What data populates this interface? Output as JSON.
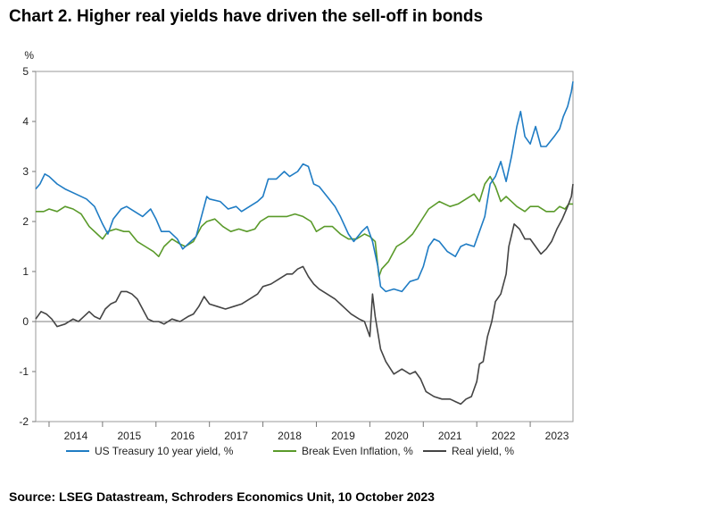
{
  "title": "Chart 2. Higher real yields have driven the sell-off in bonds",
  "source": "Source: LSEG Datastream, Schroders Economics Unit, 10 October 2023",
  "chart_data": {
    "type": "line",
    "ylabel": "%",
    "ylim": [
      -2,
      5
    ],
    "yticks": [
      -2,
      -1,
      0,
      1,
      2,
      3,
      4,
      5
    ],
    "xlim": [
      2013.75,
      2023.8
    ],
    "xticks": [
      "2014",
      "2015",
      "2016",
      "2017",
      "2018",
      "2019",
      "2020",
      "2021",
      "2022",
      "2023"
    ],
    "grid": false,
    "legend": "bottom",
    "series": [
      {
        "name": "US Treasury 10 year yield, %",
        "color": "#1f7cc4",
        "points": [
          [
            2013.75,
            2.65
          ],
          [
            2013.83,
            2.75
          ],
          [
            2013.92,
            2.95
          ],
          [
            2014.0,
            2.9
          ],
          [
            2014.15,
            2.75
          ],
          [
            2014.3,
            2.65
          ],
          [
            2014.5,
            2.55
          ],
          [
            2014.7,
            2.45
          ],
          [
            2014.85,
            2.3
          ],
          [
            2015.0,
            1.95
          ],
          [
            2015.1,
            1.75
          ],
          [
            2015.2,
            2.05
          ],
          [
            2015.35,
            2.25
          ],
          [
            2015.45,
            2.3
          ],
          [
            2015.6,
            2.2
          ],
          [
            2015.75,
            2.1
          ],
          [
            2015.9,
            2.25
          ],
          [
            2016.0,
            2.05
          ],
          [
            2016.1,
            1.8
          ],
          [
            2016.25,
            1.8
          ],
          [
            2016.4,
            1.65
          ],
          [
            2016.5,
            1.45
          ],
          [
            2016.6,
            1.55
          ],
          [
            2016.75,
            1.7
          ],
          [
            2016.85,
            2.1
          ],
          [
            2016.95,
            2.5
          ],
          [
            2017.0,
            2.45
          ],
          [
            2017.2,
            2.4
          ],
          [
            2017.35,
            2.25
          ],
          [
            2017.5,
            2.3
          ],
          [
            2017.6,
            2.2
          ],
          [
            2017.75,
            2.3
          ],
          [
            2017.9,
            2.4
          ],
          [
            2018.0,
            2.5
          ],
          [
            2018.1,
            2.85
          ],
          [
            2018.25,
            2.85
          ],
          [
            2018.4,
            3.0
          ],
          [
            2018.5,
            2.9
          ],
          [
            2018.65,
            3.0
          ],
          [
            2018.75,
            3.15
          ],
          [
            2018.85,
            3.1
          ],
          [
            2018.95,
            2.75
          ],
          [
            2019.05,
            2.7
          ],
          [
            2019.2,
            2.5
          ],
          [
            2019.35,
            2.3
          ],
          [
            2019.45,
            2.1
          ],
          [
            2019.6,
            1.75
          ],
          [
            2019.7,
            1.6
          ],
          [
            2019.85,
            1.8
          ],
          [
            2019.95,
            1.9
          ],
          [
            2020.05,
            1.6
          ],
          [
            2020.15,
            1.1
          ],
          [
            2020.2,
            0.7
          ],
          [
            2020.3,
            0.6
          ],
          [
            2020.45,
            0.65
          ],
          [
            2020.6,
            0.6
          ],
          [
            2020.75,
            0.8
          ],
          [
            2020.9,
            0.85
          ],
          [
            2021.0,
            1.1
          ],
          [
            2021.1,
            1.5
          ],
          [
            2021.2,
            1.65
          ],
          [
            2021.3,
            1.6
          ],
          [
            2021.45,
            1.4
          ],
          [
            2021.6,
            1.3
          ],
          [
            2021.7,
            1.5
          ],
          [
            2021.8,
            1.55
          ],
          [
            2021.95,
            1.5
          ],
          [
            2022.05,
            1.8
          ],
          [
            2022.15,
            2.1
          ],
          [
            2022.25,
            2.75
          ],
          [
            2022.35,
            2.9
          ],
          [
            2022.45,
            3.2
          ],
          [
            2022.55,
            2.8
          ],
          [
            2022.65,
            3.3
          ],
          [
            2022.75,
            3.9
          ],
          [
            2022.82,
            4.2
          ],
          [
            2022.9,
            3.7
          ],
          [
            2023.0,
            3.55
          ],
          [
            2023.1,
            3.9
          ],
          [
            2023.2,
            3.5
          ],
          [
            2023.3,
            3.5
          ],
          [
            2023.45,
            3.7
          ],
          [
            2023.55,
            3.85
          ],
          [
            2023.62,
            4.1
          ],
          [
            2023.7,
            4.3
          ],
          [
            2023.77,
            4.6
          ],
          [
            2023.8,
            4.8
          ]
        ]
      },
      {
        "name": "Break Even Inflation, %",
        "color": "#5a9a2a",
        "points": [
          [
            2013.75,
            2.2
          ],
          [
            2013.9,
            2.2
          ],
          [
            2014.0,
            2.25
          ],
          [
            2014.15,
            2.2
          ],
          [
            2014.3,
            2.3
          ],
          [
            2014.45,
            2.25
          ],
          [
            2014.6,
            2.15
          ],
          [
            2014.75,
            1.9
          ],
          [
            2014.9,
            1.75
          ],
          [
            2015.0,
            1.65
          ],
          [
            2015.1,
            1.8
          ],
          [
            2015.25,
            1.85
          ],
          [
            2015.4,
            1.8
          ],
          [
            2015.5,
            1.8
          ],
          [
            2015.65,
            1.6
          ],
          [
            2015.8,
            1.5
          ],
          [
            2015.95,
            1.4
          ],
          [
            2016.05,
            1.3
          ],
          [
            2016.15,
            1.5
          ],
          [
            2016.3,
            1.65
          ],
          [
            2016.45,
            1.55
          ],
          [
            2016.55,
            1.5
          ],
          [
            2016.7,
            1.6
          ],
          [
            2016.85,
            1.9
          ],
          [
            2016.95,
            2.0
          ],
          [
            2017.1,
            2.05
          ],
          [
            2017.25,
            1.9
          ],
          [
            2017.4,
            1.8
          ],
          [
            2017.55,
            1.85
          ],
          [
            2017.7,
            1.8
          ],
          [
            2017.85,
            1.85
          ],
          [
            2017.95,
            2.0
          ],
          [
            2018.1,
            2.1
          ],
          [
            2018.3,
            2.1
          ],
          [
            2018.45,
            2.1
          ],
          [
            2018.6,
            2.15
          ],
          [
            2018.75,
            2.1
          ],
          [
            2018.9,
            2.0
          ],
          [
            2019.0,
            1.8
          ],
          [
            2019.15,
            1.9
          ],
          [
            2019.3,
            1.9
          ],
          [
            2019.45,
            1.75
          ],
          [
            2019.6,
            1.65
          ],
          [
            2019.75,
            1.65
          ],
          [
            2019.9,
            1.75
          ],
          [
            2020.0,
            1.7
          ],
          [
            2020.1,
            1.6
          ],
          [
            2020.17,
            0.9
          ],
          [
            2020.22,
            1.05
          ],
          [
            2020.35,
            1.2
          ],
          [
            2020.5,
            1.5
          ],
          [
            2020.65,
            1.6
          ],
          [
            2020.8,
            1.75
          ],
          [
            2020.95,
            2.0
          ],
          [
            2021.1,
            2.25
          ],
          [
            2021.3,
            2.4
          ],
          [
            2021.5,
            2.3
          ],
          [
            2021.65,
            2.35
          ],
          [
            2021.8,
            2.45
          ],
          [
            2021.95,
            2.55
          ],
          [
            2022.05,
            2.4
          ],
          [
            2022.15,
            2.75
          ],
          [
            2022.25,
            2.9
          ],
          [
            2022.35,
            2.7
          ],
          [
            2022.45,
            2.4
          ],
          [
            2022.55,
            2.5
          ],
          [
            2022.65,
            2.4
          ],
          [
            2022.75,
            2.3
          ],
          [
            2022.9,
            2.2
          ],
          [
            2023.0,
            2.3
          ],
          [
            2023.15,
            2.3
          ],
          [
            2023.3,
            2.2
          ],
          [
            2023.45,
            2.2
          ],
          [
            2023.55,
            2.3
          ],
          [
            2023.65,
            2.25
          ],
          [
            2023.72,
            2.35
          ],
          [
            2023.8,
            2.35
          ]
        ]
      },
      {
        "name": "Real yield, %",
        "color": "#444444",
        "points": [
          [
            2013.75,
            0.05
          ],
          [
            2013.85,
            0.2
          ],
          [
            2013.95,
            0.15
          ],
          [
            2014.05,
            0.05
          ],
          [
            2014.15,
            -0.1
          ],
          [
            2014.3,
            -0.05
          ],
          [
            2014.45,
            0.05
          ],
          [
            2014.55,
            0.0
          ],
          [
            2014.65,
            0.1
          ],
          [
            2014.75,
            0.2
          ],
          [
            2014.85,
            0.1
          ],
          [
            2014.95,
            0.05
          ],
          [
            2015.05,
            0.25
          ],
          [
            2015.15,
            0.35
          ],
          [
            2015.25,
            0.4
          ],
          [
            2015.35,
            0.6
          ],
          [
            2015.45,
            0.6
          ],
          [
            2015.55,
            0.55
          ],
          [
            2015.65,
            0.45
          ],
          [
            2015.75,
            0.25
          ],
          [
            2015.85,
            0.05
          ],
          [
            2015.95,
            0.0
          ],
          [
            2016.05,
            0.0
          ],
          [
            2016.15,
            -0.05
          ],
          [
            2016.3,
            0.05
          ],
          [
            2016.45,
            0.0
          ],
          [
            2016.6,
            0.1
          ],
          [
            2016.7,
            0.15
          ],
          [
            2016.8,
            0.3
          ],
          [
            2016.9,
            0.5
          ],
          [
            2017.0,
            0.35
          ],
          [
            2017.15,
            0.3
          ],
          [
            2017.3,
            0.25
          ],
          [
            2017.45,
            0.3
          ],
          [
            2017.6,
            0.35
          ],
          [
            2017.75,
            0.45
          ],
          [
            2017.9,
            0.55
          ],
          [
            2018.0,
            0.7
          ],
          [
            2018.15,
            0.75
          ],
          [
            2018.3,
            0.85
          ],
          [
            2018.45,
            0.95
          ],
          [
            2018.55,
            0.95
          ],
          [
            2018.65,
            1.05
          ],
          [
            2018.75,
            1.1
          ],
          [
            2018.85,
            0.9
          ],
          [
            2018.95,
            0.75
          ],
          [
            2019.05,
            0.65
          ],
          [
            2019.2,
            0.55
          ],
          [
            2019.35,
            0.45
          ],
          [
            2019.5,
            0.3
          ],
          [
            2019.65,
            0.15
          ],
          [
            2019.8,
            0.05
          ],
          [
            2019.9,
            0.0
          ],
          [
            2020.0,
            -0.3
          ],
          [
            2020.05,
            0.55
          ],
          [
            2020.1,
            0.1
          ],
          [
            2020.2,
            -0.55
          ],
          [
            2020.3,
            -0.8
          ],
          [
            2020.45,
            -1.05
          ],
          [
            2020.6,
            -0.95
          ],
          [
            2020.75,
            -1.05
          ],
          [
            2020.85,
            -1.0
          ],
          [
            2020.95,
            -1.15
          ],
          [
            2021.05,
            -1.4
          ],
          [
            2021.2,
            -1.5
          ],
          [
            2021.35,
            -1.55
          ],
          [
            2021.5,
            -1.55
          ],
          [
            2021.6,
            -1.6
          ],
          [
            2021.7,
            -1.65
          ],
          [
            2021.8,
            -1.55
          ],
          [
            2021.9,
            -1.5
          ],
          [
            2022.0,
            -1.2
          ],
          [
            2022.05,
            -0.85
          ],
          [
            2022.12,
            -0.8
          ],
          [
            2022.2,
            -0.3
          ],
          [
            2022.28,
            0.0
          ],
          [
            2022.35,
            0.4
          ],
          [
            2022.45,
            0.55
          ],
          [
            2022.55,
            0.95
          ],
          [
            2022.6,
            1.5
          ],
          [
            2022.7,
            1.95
          ],
          [
            2022.8,
            1.85
          ],
          [
            2022.9,
            1.65
          ],
          [
            2023.0,
            1.65
          ],
          [
            2023.1,
            1.5
          ],
          [
            2023.2,
            1.35
          ],
          [
            2023.3,
            1.45
          ],
          [
            2023.4,
            1.6
          ],
          [
            2023.5,
            1.85
          ],
          [
            2023.6,
            2.05
          ],
          [
            2023.7,
            2.3
          ],
          [
            2023.77,
            2.5
          ],
          [
            2023.8,
            2.75
          ]
        ]
      }
    ]
  }
}
